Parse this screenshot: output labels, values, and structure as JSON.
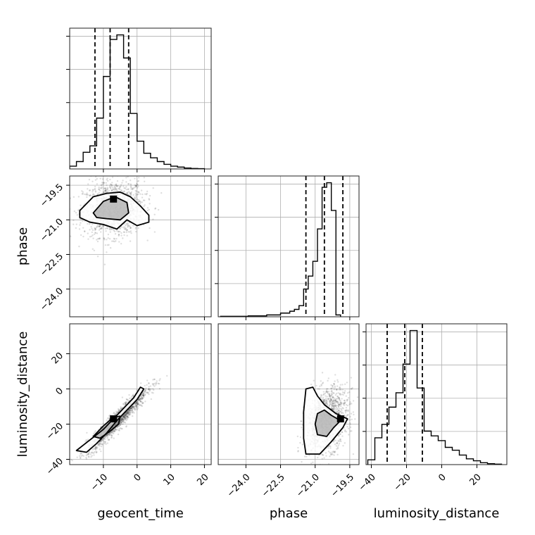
{
  "chart_data": {
    "type": "corner",
    "grid": true,
    "parameters": [
      {
        "name": "geocent_time",
        "range": [
          -20,
          22
        ],
        "ticks": [
          -10,
          0,
          10,
          20
        ],
        "tick_labels": [
          "−10",
          "0",
          "10",
          "20"
        ]
      },
      {
        "name": "phase",
        "range": [
          -25.2,
          -19.1
        ],
        "ticks": [
          -24.0,
          -22.5,
          -21.0,
          -19.5
        ],
        "tick_labels": [
          "−24.0",
          "−22.5",
          "−21.0",
          "−19.5"
        ]
      },
      {
        "name": "luminosity_distance",
        "range": [
          -43,
          37
        ],
        "ticks": [
          -40,
          -20,
          0,
          20
        ],
        "tick_labels": [
          "−40",
          "−20",
          "0",
          "20"
        ]
      }
    ],
    "marginals": [
      {
        "param": "geocent_time",
        "bin_edges": [
          -20,
          -18,
          -16,
          -14,
          -12,
          -10,
          -8,
          -6,
          -4,
          -2,
          0,
          2,
          4,
          6,
          8,
          10,
          12,
          14,
          16,
          18,
          20
        ],
        "counts": [
          3,
          8,
          18,
          25,
          55,
          100,
          140,
          145,
          120,
          60,
          30,
          17,
          12,
          8,
          5,
          3,
          2,
          1,
          0.5,
          0.3
        ],
        "quantiles": [
          -12.5,
          -8.0,
          -2.5
        ]
      },
      {
        "param": "phase",
        "bin_edges": [
          -25.1,
          -24.9,
          -24.7,
          -24.5,
          -24.3,
          -24.1,
          -23.9,
          -23.7,
          -23.5,
          -23.3,
          -23.1,
          -22.9,
          -22.7,
          -22.5,
          -22.3,
          -22.1,
          -21.9,
          -21.7,
          -21.5,
          -21.3,
          -21.1,
          -20.9,
          -20.7,
          -20.5,
          -20.3,
          -20.1,
          -19.9
        ],
        "counts": [
          0.5,
          0.5,
          0.5,
          0.5,
          0.5,
          0.5,
          1,
          1,
          1,
          1,
          2,
          2,
          2,
          4,
          4,
          6,
          8,
          12,
          30,
          44,
          60,
          95,
          140,
          145,
          115,
          2
        ],
        "quantiles": [
          -21.4,
          -20.6,
          -19.8
        ]
      },
      {
        "param": "luminosity_distance",
        "bin_edges": [
          -42,
          -38,
          -34,
          -30,
          -26,
          -22,
          -18,
          -14,
          -10,
          -6,
          -2,
          2,
          6,
          10,
          14,
          18,
          22,
          26,
          30,
          34
        ],
        "counts": [
          5,
          28,
          42,
          60,
          75,
          105,
          140,
          80,
          35,
          30,
          25,
          18,
          15,
          10,
          6,
          4,
          2,
          1,
          0.5
        ],
        "quantiles": [
          -31,
          -21,
          -11
        ]
      }
    ],
    "joint": [
      {
        "x": "geocent_time",
        "y": "phase",
        "mean": [
          -7,
          -20.5
        ],
        "sd": [
          4.5,
          0.6
        ],
        "corr": 0.1,
        "peak": [
          -7,
          -20.1
        ],
        "contours": [
          [
            [
              -17,
              -20.6
            ],
            [
              -13,
              -20.0
            ],
            [
              -9,
              -19.85
            ],
            [
              -5,
              -19.8
            ],
            [
              -2,
              -20.0
            ],
            [
              1,
              -20.4
            ],
            [
              3.5,
              -20.8
            ],
            [
              3.5,
              -21.1
            ],
            [
              0,
              -21.25
            ],
            [
              -3,
              -21.0
            ],
            [
              -6,
              -21.4
            ],
            [
              -10,
              -21.2
            ],
            [
              -14,
              -21.1
            ],
            [
              -17,
              -20.9
            ]
          ],
          [
            [
              -13,
              -20.7
            ],
            [
              -10,
              -20.2
            ],
            [
              -6.5,
              -20.0
            ],
            [
              -3,
              -20.25
            ],
            [
              -2.5,
              -20.7
            ],
            [
              -5,
              -21.0
            ],
            [
              -9,
              -20.95
            ],
            [
              -12,
              -20.9
            ]
          ]
        ]
      },
      {
        "x": "geocent_time",
        "y": "luminosity_distance",
        "mean": [
          -6,
          -18
        ],
        "sd": [
          4.5,
          9
        ],
        "corr": 0.95,
        "peak": [
          -7,
          -17
        ],
        "contours": [
          [
            [
              -18,
              -35
            ],
            [
              -14,
              -29
            ],
            [
              -10,
              -23
            ],
            [
              -7,
              -17
            ],
            [
              -4,
              -11
            ],
            [
              -1,
              -5
            ],
            [
              1,
              1
            ],
            [
              2,
              0
            ],
            [
              0,
              -6
            ],
            [
              -3,
              -12
            ],
            [
              -6,
              -18
            ],
            [
              -9,
              -25
            ],
            [
              -12,
              -31
            ],
            [
              -15,
              -36
            ]
          ],
          [
            [
              -13,
              -27
            ],
            [
              -10,
              -21
            ],
            [
              -7,
              -16
            ],
            [
              -5,
              -15.5
            ],
            [
              -5.5,
              -20
            ],
            [
              -8,
              -24
            ],
            [
              -11,
              -28
            ]
          ]
        ]
      },
      {
        "x": "phase",
        "y": "luminosity_distance",
        "mean": [
          -20.5,
          -18
        ],
        "sd": [
          0.45,
          9
        ],
        "corr": 0.3,
        "peak": [
          -19.9,
          -17
        ],
        "contours": [
          [
            [
              -21.5,
              -13
            ],
            [
              -21.4,
              0
            ],
            [
              -21.1,
              1
            ],
            [
              -20.9,
              -4
            ],
            [
              -20.6,
              -9
            ],
            [
              -20.1,
              -14
            ],
            [
              -19.6,
              -17
            ],
            [
              -19.8,
              -22
            ],
            [
              -20.3,
              -30
            ],
            [
              -20.8,
              -37
            ],
            [
              -21.4,
              -37
            ],
            [
              -21.5,
              -28
            ]
          ],
          [
            [
              -20.9,
              -14
            ],
            [
              -20.6,
              -12
            ],
            [
              -20.3,
              -15
            ],
            [
              -19.9,
              -18
            ],
            [
              -20.2,
              -22
            ],
            [
              -20.5,
              -27
            ],
            [
              -20.9,
              -26
            ],
            [
              -21.0,
              -20
            ]
          ]
        ]
      }
    ]
  }
}
